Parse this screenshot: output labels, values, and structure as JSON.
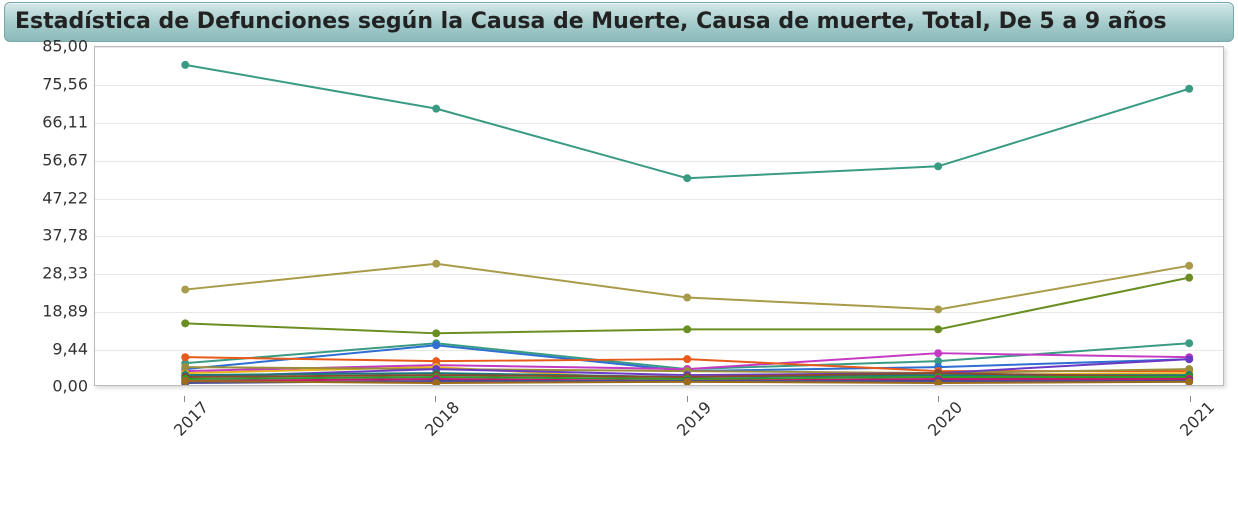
{
  "title": "Estadística de Defunciones según la Causa de Muerte, Causa de muerte, Total, De 5 a 9 años",
  "chart": {
    "type": "line",
    "x_categories": [
      "2017",
      "2018",
      "2019",
      "2020",
      "2021"
    ],
    "ylim": [
      0,
      85
    ],
    "y_ticks": [
      0.0,
      9.44,
      18.89,
      28.33,
      37.78,
      47.22,
      56.67,
      66.11,
      75.56,
      85.0
    ],
    "y_tick_labels": [
      "0,00",
      "9,44",
      "18,89",
      "28,33",
      "37,78",
      "47,22",
      "56,67",
      "66,11",
      "75,56",
      "85,00"
    ],
    "grid_color": "#e8e8e8",
    "background_color": "#ffffff",
    "border_color": "#bbbbbb",
    "title_fontsize": 22,
    "tick_fontsize": 16,
    "marker_radius": 4,
    "line_width": 2,
    "plot_shadow": true,
    "x_label_rotation": -45,
    "title_bar_gradient": [
      "#d4e8e8",
      "#a8cdcd",
      "#8bbaba"
    ],
    "series": [
      {
        "color": "#3a9b84",
        "values": [
          80.5,
          69.5,
          52.0,
          55.0,
          74.5
        ]
      },
      {
        "color": "#a89b4a",
        "values": [
          24.0,
          30.5,
          22.0,
          19.0,
          30.0
        ]
      },
      {
        "color": "#6b8e23",
        "values": [
          15.5,
          13.0,
          14.0,
          14.0,
          27.0
        ]
      },
      {
        "color": "#3a9b84",
        "values": [
          5.5,
          10.5,
          4.0,
          6.0,
          10.5
        ]
      },
      {
        "color": "#2e6fd1",
        "values": [
          4.0,
          10.0,
          3.5,
          4.5,
          6.5
        ]
      },
      {
        "color": "#c43ac4",
        "values": [
          3.5,
          5.0,
          4.0,
          8.0,
          7.0
        ]
      },
      {
        "color": "#e85a1a",
        "values": [
          7.0,
          6.0,
          6.5,
          3.5,
          3.5
        ]
      },
      {
        "color": "#e8b41a",
        "values": [
          3.0,
          4.5,
          1.0,
          2.5,
          3.0
        ]
      },
      {
        "color": "#9b8e3a",
        "values": [
          4.5,
          4.0,
          3.5,
          3.0,
          4.0
        ]
      },
      {
        "color": "#6b3ac4",
        "values": [
          2.0,
          4.0,
          2.5,
          3.0,
          6.5
        ]
      },
      {
        "color": "#1a7a7a",
        "values": [
          2.5,
          3.0,
          2.0,
          2.5,
          2.5
        ]
      },
      {
        "color": "#8b4a2e",
        "values": [
          2.0,
          2.5,
          2.0,
          3.0,
          2.0
        ]
      },
      {
        "color": "#2e9b2e",
        "values": [
          1.5,
          2.0,
          1.5,
          2.0,
          2.0
        ]
      },
      {
        "color": "#c41a6b",
        "values": [
          1.0,
          1.5,
          1.0,
          1.5,
          1.5
        ]
      },
      {
        "color": "#4a4a9b",
        "values": [
          0.5,
          1.0,
          1.0,
          1.0,
          1.0
        ]
      },
      {
        "color": "#9b6b1a",
        "values": [
          1.0,
          0.5,
          0.8,
          0.5,
          0.8
        ]
      }
    ]
  }
}
